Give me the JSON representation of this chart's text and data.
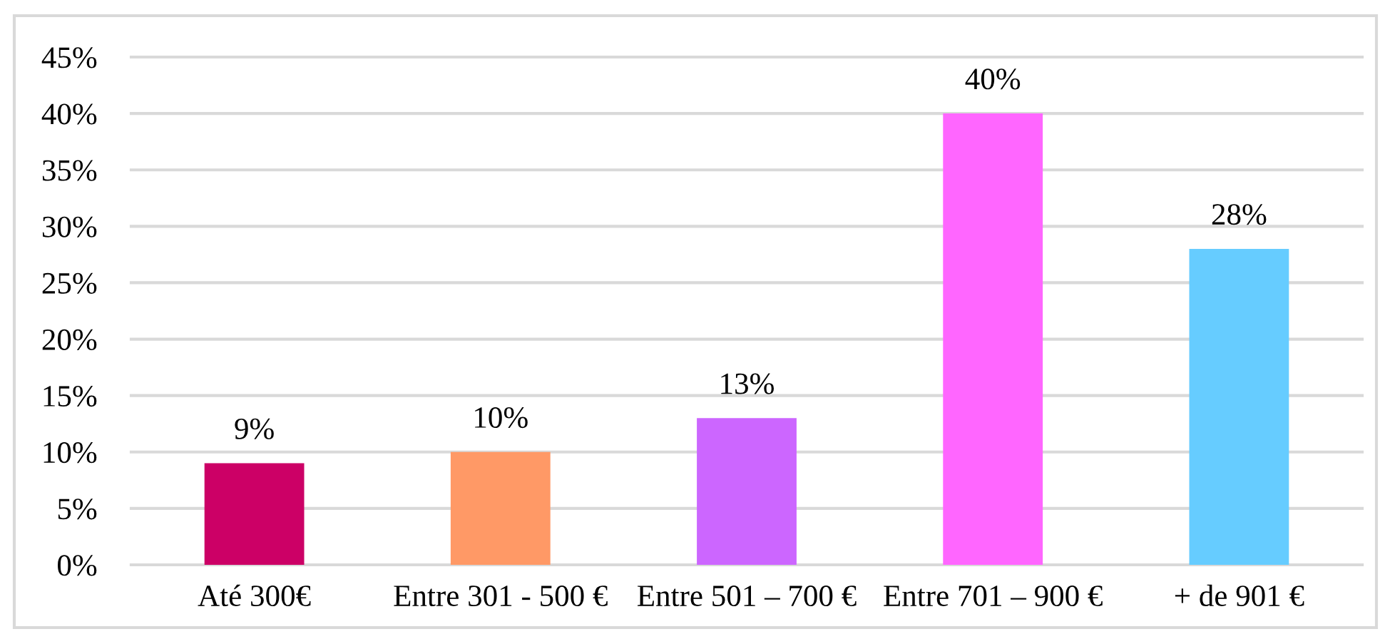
{
  "chart_data": {
    "type": "bar",
    "categories": [
      "Até 300€",
      "Entre 301 - 500 €",
      "Entre 501 – 700 €",
      "Entre 701 – 900 €",
      "+ de 901 €"
    ],
    "values": [
      9,
      10,
      13,
      40,
      28
    ],
    "colors": [
      "#cc0066",
      "#ff9966",
      "#cc66ff",
      "#ff66ff",
      "#66ccff"
    ],
    "value_labels": [
      "9%",
      "10%",
      "13%",
      "40%",
      "28%"
    ],
    "ylim": [
      0,
      45
    ],
    "yticks": [
      {
        "value": 0,
        "label": "0%"
      },
      {
        "value": 5,
        "label": "5%"
      },
      {
        "value": 10,
        "label": "10%"
      },
      {
        "value": 15,
        "label": "15%"
      },
      {
        "value": 20,
        "label": "20%"
      },
      {
        "value": 25,
        "label": "25%"
      },
      {
        "value": 30,
        "label": "30%"
      },
      {
        "value": 35,
        "label": "35%"
      },
      {
        "value": 40,
        "label": "40%"
      },
      {
        "value": 45,
        "label": "45%"
      }
    ],
    "grid": "y"
  }
}
